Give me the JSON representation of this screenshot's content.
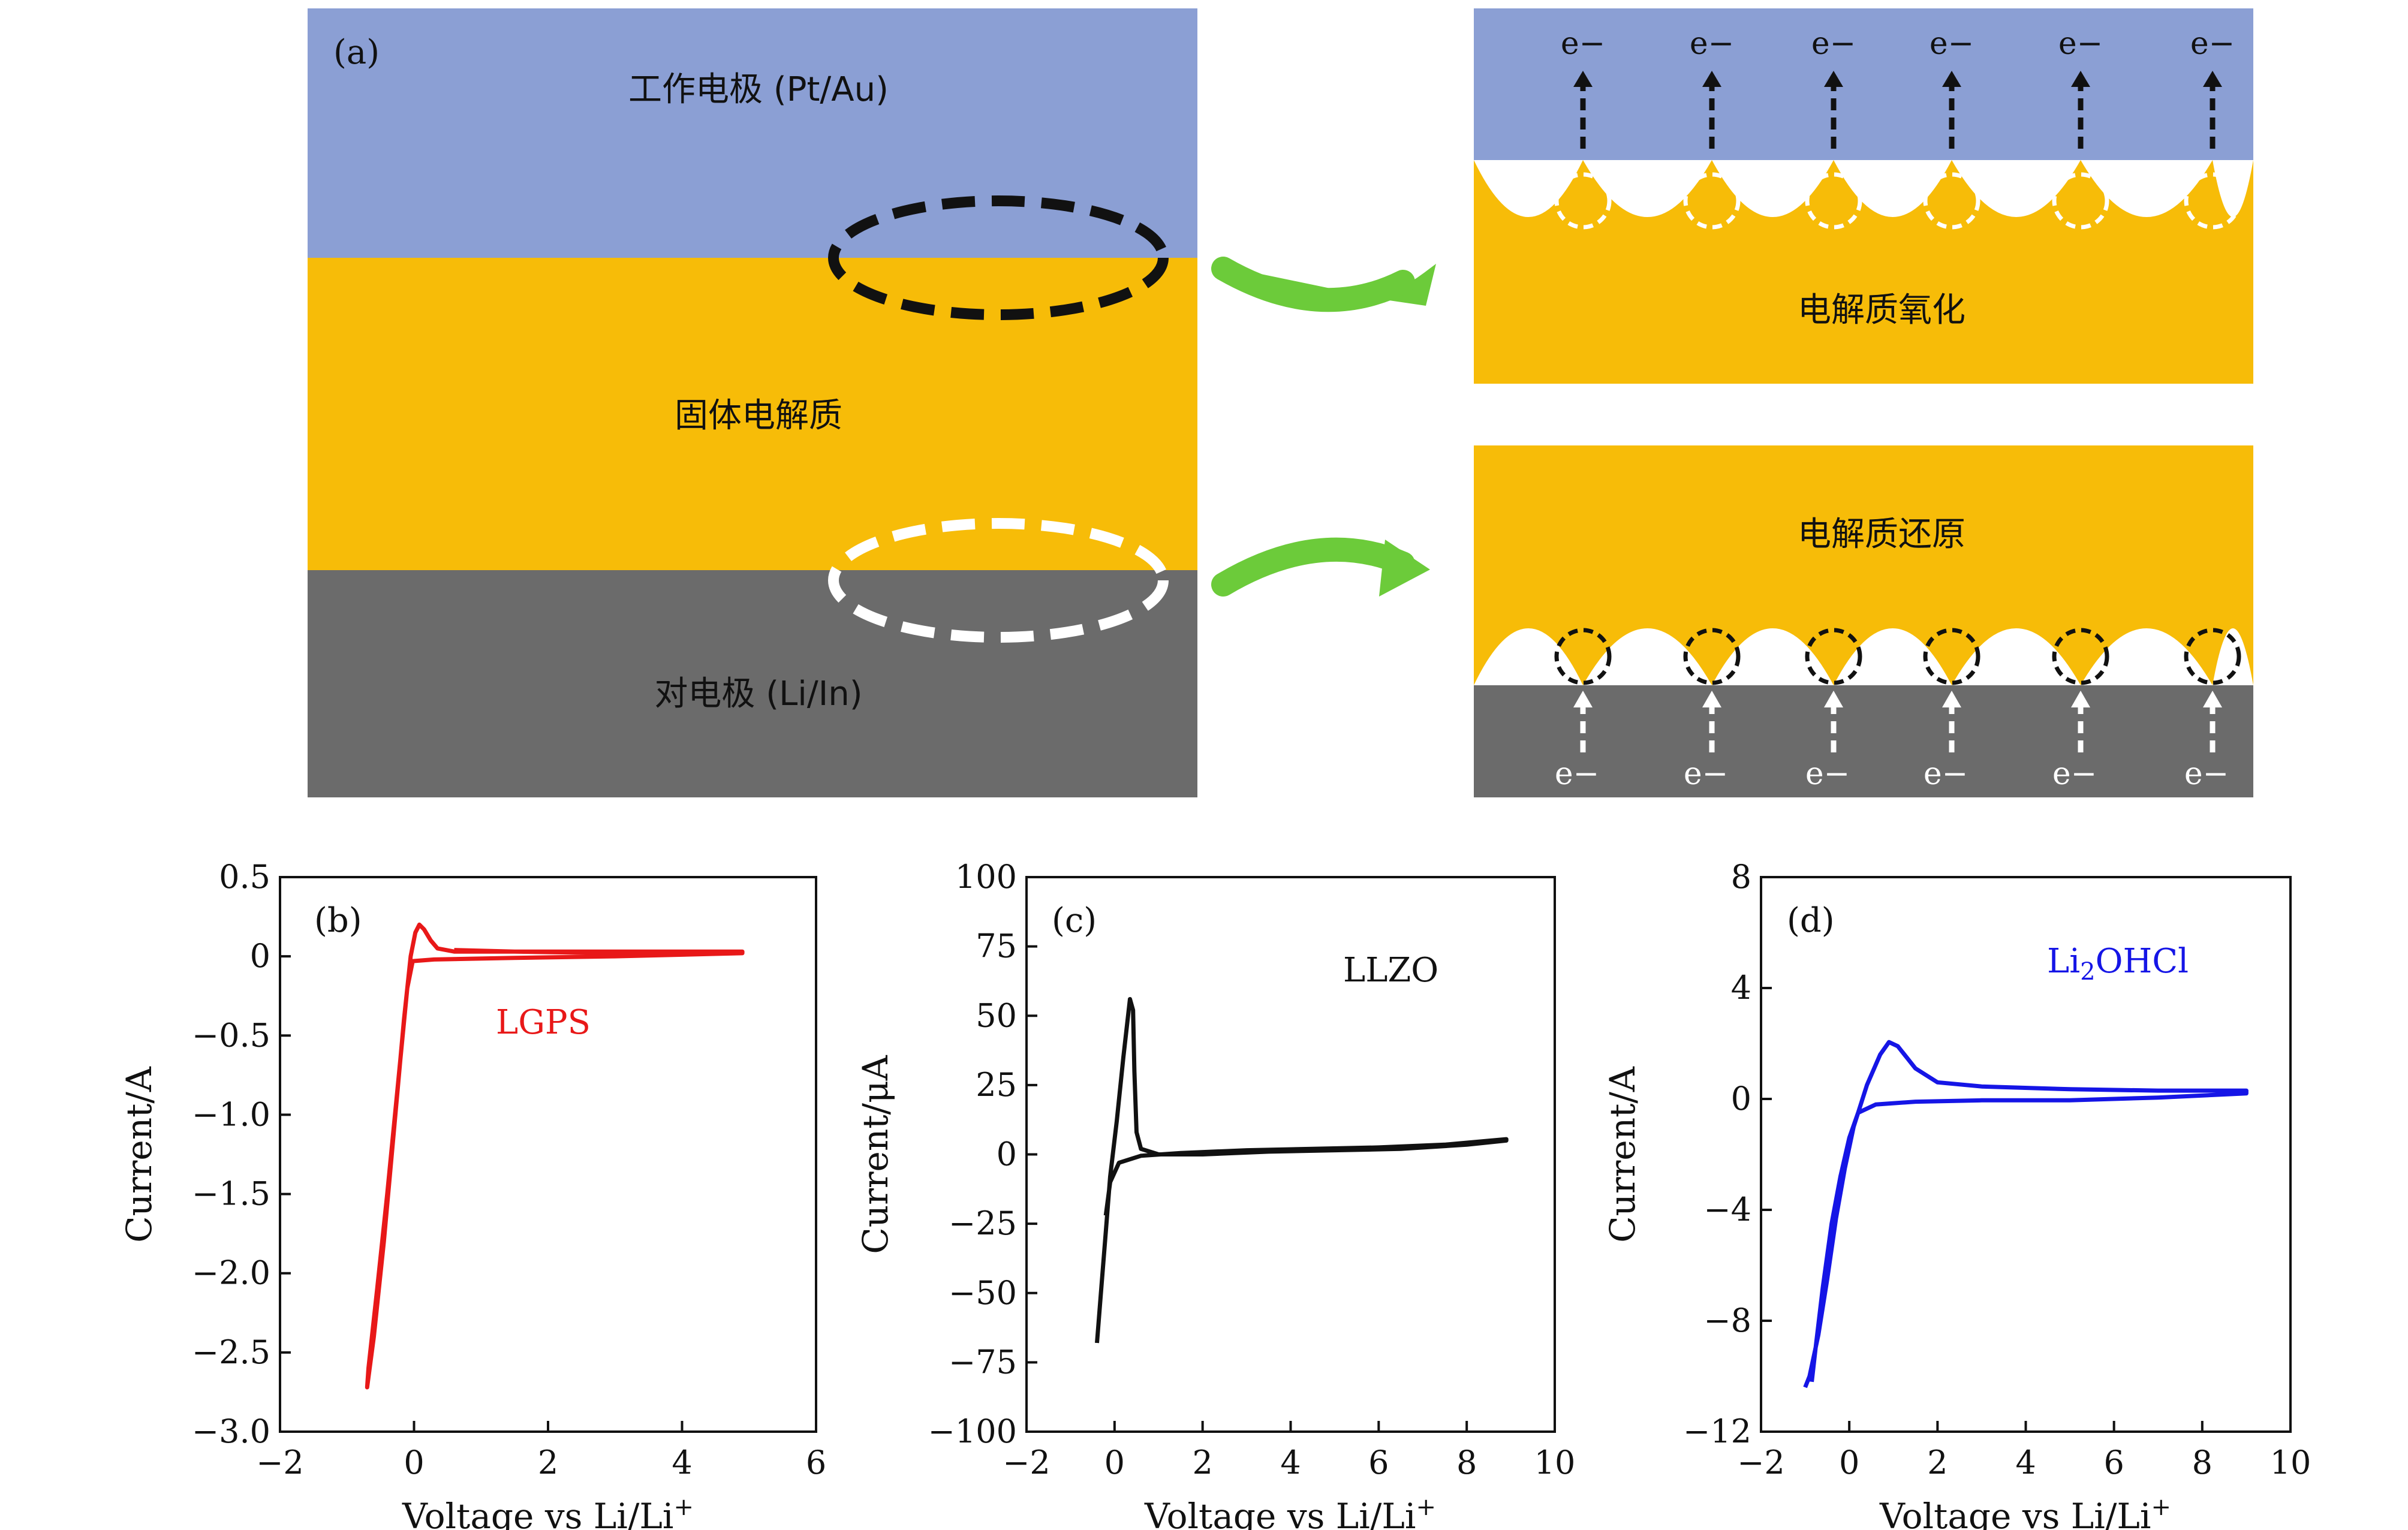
{
  "colors": {
    "working_electrode": "#8B9FD4",
    "electrolyte": "#F7BC08",
    "counter_electrode": "#6B6B6B",
    "arrow_green": "#6CCB3A",
    "lgps": "#E81818",
    "llzo": "#111111",
    "li2ohcl": "#1515E6"
  },
  "schematic": {
    "panel_label": "(a)",
    "working_electrode": "工作电极 (Pt/Au)",
    "electrolyte": "固体电解质",
    "counter_electrode": "对电极 (Li/In)",
    "oxidation": "电解质氧化",
    "reduction": "电解质还原",
    "electron": "e−"
  },
  "chart_data": [
    {
      "type": "line",
      "panel": "(b)",
      "series": [
        {
          "name": "LGPS",
          "color": "#E81818",
          "points": [
            [
              0.6,
              0.04
            ],
            [
              1.5,
              0.03
            ],
            [
              3.0,
              0.02
            ],
            [
              4.9,
              0.02
            ],
            [
              4.9,
              0.03
            ],
            [
              3.0,
              0.03
            ],
            [
              1.5,
              0.03
            ],
            [
              0.6,
              0.03
            ],
            [
              0.35,
              0.05
            ],
            [
              0.25,
              0.1
            ],
            [
              0.15,
              0.17
            ],
            [
              0.08,
              0.2
            ],
            [
              0.02,
              0.15
            ],
            [
              -0.05,
              0.0
            ],
            [
              -0.15,
              -0.4
            ],
            [
              -0.3,
              -1.1
            ],
            [
              -0.45,
              -1.8
            ],
            [
              -0.6,
              -2.4
            ],
            [
              -0.7,
              -2.72
            ],
            [
              -0.68,
              -2.6
            ],
            [
              -0.55,
              -2.1
            ],
            [
              -0.4,
              -1.5
            ],
            [
              -0.25,
              -0.85
            ],
            [
              -0.1,
              -0.2
            ],
            [
              -0.02,
              -0.03
            ],
            [
              0.3,
              -0.02
            ],
            [
              1.5,
              -0.01
            ],
            [
              3.0,
              0.0
            ],
            [
              4.9,
              0.02
            ]
          ]
        }
      ],
      "xlim": [
        -2,
        6
      ],
      "ylim": [
        -3.0,
        0.5
      ],
      "xticks": [
        -2,
        0,
        2,
        4,
        6
      ],
      "yticks": [
        0.5,
        0,
        -0.5,
        -1.0,
        -1.5,
        -2.0,
        -2.5,
        -3.0
      ],
      "xtick_labels": [
        "−2",
        "0",
        "2",
        "4",
        "6"
      ],
      "ytick_labels": [
        "0.5",
        "0",
        "−0.5",
        "−1.0",
        "−1.5",
        "−2.0",
        "−2.5",
        "−3.0"
      ],
      "xlabel": "Voltage vs Li/Li",
      "xlabel_sup": "+",
      "ylabel": "Current/A",
      "annotation": "LGPS"
    },
    {
      "type": "line",
      "panel": "(c)",
      "series": [
        {
          "name": "LLZO",
          "color": "#111111",
          "points": [
            [
              -0.4,
              -68
            ],
            [
              -0.3,
              -48
            ],
            [
              -0.2,
              -28
            ],
            [
              -0.1,
              -8
            ],
            [
              0.05,
              12
            ],
            [
              0.2,
              35
            ],
            [
              0.35,
              56
            ],
            [
              0.42,
              52
            ],
            [
              0.45,
              30
            ],
            [
              0.5,
              8
            ],
            [
              0.6,
              2
            ],
            [
              1.0,
              0
            ],
            [
              2.0,
              0
            ],
            [
              3.5,
              1
            ],
            [
              5.0,
              1.5
            ],
            [
              6.5,
              2
            ],
            [
              8.0,
              3.5
            ],
            [
              8.9,
              5
            ],
            [
              8.9,
              5.5
            ],
            [
              7.5,
              3.5
            ],
            [
              6.0,
              2.5
            ],
            [
              4.5,
              2
            ],
            [
              3.0,
              1.5
            ],
            [
              1.5,
              0.5
            ],
            [
              0.6,
              -0.5
            ],
            [
              0.1,
              -3
            ],
            [
              -0.1,
              -10
            ],
            [
              -0.2,
              -22
            ]
          ]
        }
      ],
      "xlim": [
        -2,
        10
      ],
      "ylim": [
        -100,
        100
      ],
      "xticks": [
        -2,
        0,
        2,
        4,
        6,
        8,
        10
      ],
      "yticks": [
        100,
        75,
        50,
        25,
        0,
        -25,
        -50,
        -75,
        -100
      ],
      "xtick_labels": [
        "−2",
        "0",
        "2",
        "4",
        "6",
        "8",
        "10"
      ],
      "ytick_labels": [
        "100",
        "75",
        "50",
        "25",
        "0",
        "−25",
        "−50",
        "−75",
        "−100"
      ],
      "xlabel": "Voltage vs Li/Li",
      "xlabel_sup": "+",
      "ylabel": "Current/μA",
      "annotation": "LLZO"
    },
    {
      "type": "line",
      "panel": "(d)",
      "series": [
        {
          "name": "Li2OHCl",
          "color": "#1515E6",
          "points": [
            [
              -1.0,
              -10.4
            ],
            [
              -0.9,
              -10.0
            ],
            [
              -0.7,
              -8.5
            ],
            [
              -0.5,
              -6.5
            ],
            [
              -0.3,
              -4.3
            ],
            [
              -0.1,
              -2.5
            ],
            [
              0.1,
              -1.0
            ],
            [
              0.4,
              0.5
            ],
            [
              0.7,
              1.6
            ],
            [
              0.9,
              2.05
            ],
            [
              1.1,
              1.9
            ],
            [
              1.5,
              1.1
            ],
            [
              2.0,
              0.6
            ],
            [
              3.0,
              0.45
            ],
            [
              5.0,
              0.35
            ],
            [
              7.0,
              0.3
            ],
            [
              9.0,
              0.3
            ],
            [
              9.0,
              0.2
            ],
            [
              7.0,
              0.05
            ],
            [
              5.0,
              -0.05
            ],
            [
              3.0,
              -0.05
            ],
            [
              1.5,
              -0.1
            ],
            [
              0.6,
              -0.2
            ],
            [
              0.2,
              -0.5
            ],
            [
              0.0,
              -1.4
            ],
            [
              -0.2,
              -2.8
            ],
            [
              -0.4,
              -4.5
            ],
            [
              -0.6,
              -6.8
            ],
            [
              -0.75,
              -8.8
            ],
            [
              -0.85,
              -10.2
            ]
          ]
        }
      ],
      "xlim": [
        -2,
        10
      ],
      "ylim": [
        -12,
        8
      ],
      "xticks": [
        -2,
        0,
        2,
        4,
        6,
        8,
        10
      ],
      "yticks": [
        8,
        4,
        0,
        -4,
        -8,
        -12
      ],
      "xtick_labels": [
        "−2",
        "0",
        "2",
        "4",
        "6",
        "8",
        "10"
      ],
      "ytick_labels": [
        "8",
        "4",
        "0",
        "−4",
        "−8",
        "−12"
      ],
      "xlabel": "Voltage vs Li/Li",
      "xlabel_sup": "+",
      "ylabel": "Current/A",
      "annotation": "Li",
      "annotation_sub": "2",
      "annotation_rest": "OHCl"
    }
  ]
}
